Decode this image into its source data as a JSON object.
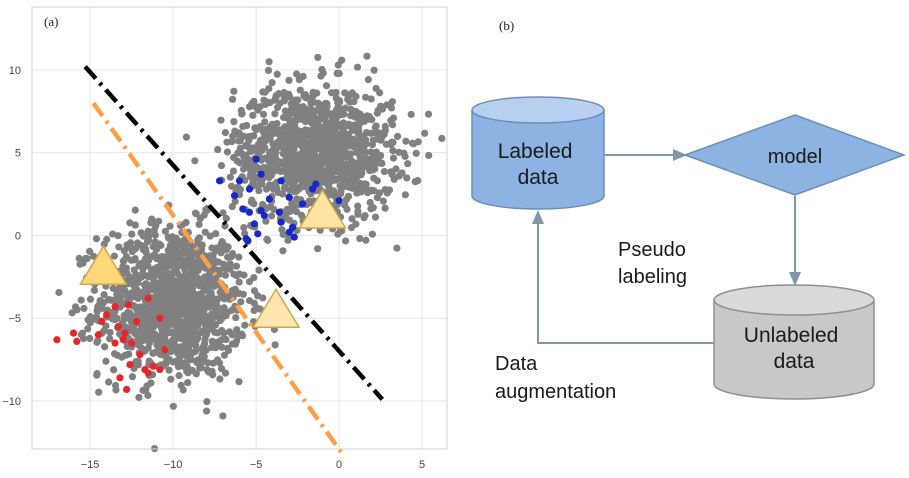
{
  "panel_a": {
    "label": "(a)",
    "chart_data": {
      "type": "scatter",
      "xlim": [
        -18.5,
        6.5
      ],
      "ylim": [
        -12.9,
        13.8
      ],
      "xticks": [
        -15,
        -10,
        -5,
        0,
        5
      ],
      "yticks": [
        10,
        5,
        0,
        -5,
        -10
      ],
      "grid": true,
      "clusters": [
        {
          "name": "",
          "color": "#808080",
          "center": [
            -10,
            -4
          ],
          "spread": [
            2.2,
            2.3
          ],
          "n": 1200
        },
        {
          "name": "",
          "color": "#808080",
          "center": [
            -1.5,
            5
          ],
          "spread": [
            2.4,
            2.0
          ],
          "n": 1200
        }
      ],
      "labeled_points": [
        {
          "name": "",
          "color": "#e8262a",
          "points": [
            [
              -17,
              -6.3
            ],
            [
              -16,
              -5.9
            ],
            [
              -15.8,
              -6.4
            ],
            [
              -14.5,
              -6.0
            ],
            [
              -14.3,
              -5.2
            ],
            [
              -14,
              -4.8
            ],
            [
              -13.5,
              -4.3
            ],
            [
              -13.3,
              -5.5
            ],
            [
              -13,
              -6.3
            ],
            [
              -12.5,
              -6.5
            ],
            [
              -12.2,
              -5.2
            ],
            [
              -12,
              -7.2
            ],
            [
              -11.7,
              -8.1
            ],
            [
              -11.5,
              -8.3
            ],
            [
              -11.2,
              -7.9
            ],
            [
              -10.8,
              -8.1
            ],
            [
              -10.5,
              -6.9
            ],
            [
              -10.8,
              -5.0
            ],
            [
              -11.5,
              -3.8
            ],
            [
              -12.7,
              -4.2
            ],
            [
              -13.5,
              -6.5
            ],
            [
              -12.8,
              -9.3
            ],
            [
              -13.2,
              -8.6
            ],
            [
              -12.6,
              -7.8
            ],
            [
              -12.9,
              -5.9
            ]
          ]
        },
        {
          "name": "",
          "color": "#1727c8",
          "points": [
            [
              -7.2,
              3.3
            ],
            [
              -6.3,
              2.4
            ],
            [
              -6,
              3.3
            ],
            [
              -5.4,
              2.8
            ],
            [
              -5,
              4.6
            ],
            [
              -4.7,
              3.7
            ],
            [
              -3.5,
              3.3
            ],
            [
              -3,
              2.3
            ],
            [
              -5.8,
              1.6
            ],
            [
              -5.4,
              1.4
            ],
            [
              -4.7,
              1.5
            ],
            [
              -5.1,
              0.7
            ],
            [
              -4.9,
              0.1
            ],
            [
              -5.5,
              -0.3
            ],
            [
              -4.5,
              1.2
            ],
            [
              -4.2,
              2.2
            ],
            [
              -3.6,
              1.4
            ],
            [
              -3.5,
              0.8
            ],
            [
              -3,
              0.2
            ],
            [
              -2.7,
              -0.1
            ],
            [
              -1.6,
              2.8
            ],
            [
              -1.4,
              3.1
            ],
            [
              -2.2,
              1.9
            ],
            [
              0,
              2.1
            ],
            [
              -5.6,
              -0.2
            ],
            [
              -2.8,
              0.5
            ]
          ]
        }
      ],
      "prototypes": [
        {
          "name": "",
          "x": -14.2,
          "y": -1.8,
          "fill": "#ffd87a",
          "stroke": "#cfa64c"
        },
        {
          "name": "",
          "x": -1.0,
          "y": 1.6,
          "fill": "#ffe3a3",
          "stroke": "#cfa64c"
        },
        {
          "name": "",
          "x": -3.8,
          "y": -4.4,
          "fill": "#ffe6b0",
          "stroke": "#cfa64c"
        }
      ],
      "lines": [
        {
          "name": "",
          "color": "#000000",
          "x1": -15.3,
          "y1": 10.2,
          "x2": 2.6,
          "y2": -9.9,
          "dash": "dashdot"
        },
        {
          "name": "",
          "color": "#ff9f45",
          "x1": -14.8,
          "y1": 8.0,
          "x2": 0.2,
          "y2": -13.2,
          "dash": "dashdot"
        }
      ]
    }
  },
  "panel_b": {
    "label": "(b)",
    "labeled_data": "Labeled\ndata",
    "model": "model",
    "unlabeled_data": "Unlabeled\ndata",
    "pseudo_labeling": "Pseudo\nlabeling",
    "data_augmentation": "Data\naugmentation",
    "colors": {
      "labeled_fill": "#8db3e2",
      "labeled_top": "#b8d0ef",
      "labeled_stroke": "#6b8dbb",
      "model_fill": "#8db3e2",
      "model_stroke": "#6b8dbb",
      "unlabeled_fill": "#c8c8c8",
      "unlabeled_top": "#dadada",
      "unlabeled_stroke": "#8f8f8f",
      "arrow": "#8496a9"
    }
  }
}
